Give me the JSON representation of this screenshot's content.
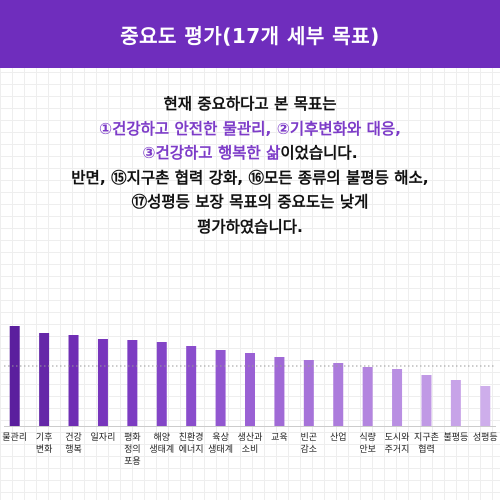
{
  "header": {
    "title": "중요도 평가(17개 세부 목표)"
  },
  "summary": {
    "l1": "현재 중요하다고 본 목표는",
    "l2": "①건강하고 안전한  물관리, ②기후변화와 대응,",
    "l3a": "③건강하고 행복한 삶",
    "l3b": "이었습니다.",
    "l4": "반면, ⑮지구촌 협력 강화, ⑯모든 종류의 불평등 해소,",
    "l5": "⑰성평등 보장 목표의 중요도는 낮게",
    "l6": "평가하였습니다."
  },
  "chart_data": {
    "type": "bar",
    "categories": [
      [
        "물관리"
      ],
      [
        "기후",
        "변화"
      ],
      [
        "건강",
        "행복"
      ],
      [
        "일자리"
      ],
      [
        "평화",
        "정의",
        "포용"
      ],
      [
        "해양",
        "생태계"
      ],
      [
        "친환경",
        "에너지"
      ],
      [
        "육상",
        "생태계"
      ],
      [
        "생산과",
        "소비"
      ],
      [
        "교육"
      ],
      [
        "빈곤",
        "감소"
      ],
      [
        "산업"
      ],
      [
        "식량",
        "안보"
      ],
      [
        "도시와",
        "주거지"
      ],
      [
        "지구촌",
        "협력"
      ],
      [
        "불평등"
      ],
      [
        "성평등"
      ]
    ],
    "values": [
      100,
      93,
      91,
      87,
      86,
      84,
      80,
      76,
      73,
      69,
      66,
      63,
      59,
      57,
      51,
      46,
      40
    ],
    "colors": [
      "#5b1f9e",
      "#6527a8",
      "#6f2db4",
      "#7735bc",
      "#7c3cc2",
      "#8345c7",
      "#8a4dcc",
      "#9257d0",
      "#9a61d4",
      "#a06ad6",
      "#a673d9",
      "#ac7cdc",
      "#b385df",
      "#b98fe2",
      "#c099e5",
      "#c7a3e8",
      "#ceaeeb"
    ],
    "reference_line": 60,
    "ylim": [
      0,
      110
    ],
    "grid": false
  }
}
